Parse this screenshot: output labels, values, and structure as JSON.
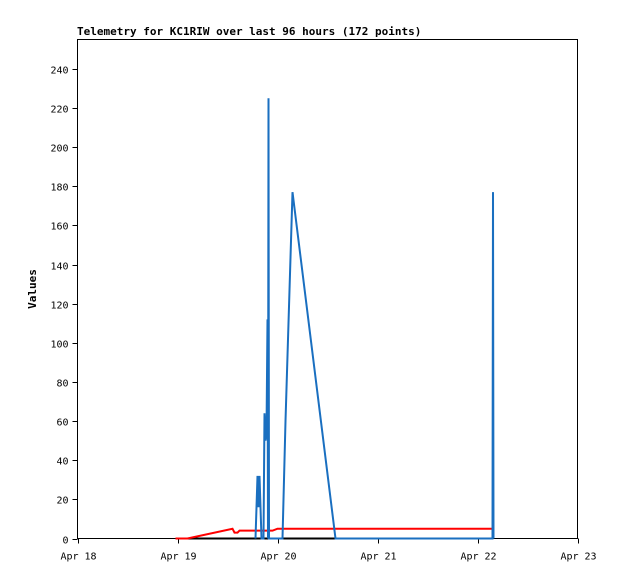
{
  "chart_data": {
    "type": "line",
    "title": "Telemetry for KC1RIW over last 96 hours (172 points)",
    "ylabel": "Values",
    "xlabel": "",
    "xlim": [
      0,
      5
    ],
    "ylim": [
      0,
      255
    ],
    "y_ticks": [
      0,
      20,
      40,
      60,
      80,
      100,
      120,
      140,
      160,
      180,
      200,
      220,
      240
    ],
    "x_ticks": [
      {
        "value": 0,
        "label": "Apr 18"
      },
      {
        "value": 1,
        "label": "Apr 19"
      },
      {
        "value": 2,
        "label": "Apr 20"
      },
      {
        "value": 3,
        "label": "Apr 21"
      },
      {
        "value": 4,
        "label": "Apr 22"
      },
      {
        "value": 5,
        "label": "Apr 23"
      }
    ],
    "grid": false,
    "series": [
      {
        "color": "#000000",
        "points": [
          [
            0.98,
            0
          ],
          [
            4.15,
            0
          ]
        ]
      },
      {
        "color": "#ff0000",
        "points": [
          [
            0.98,
            0
          ],
          [
            1.1,
            0
          ],
          [
            1.55,
            5
          ],
          [
            1.57,
            3
          ],
          [
            1.6,
            3
          ],
          [
            1.62,
            4
          ],
          [
            1.65,
            4
          ],
          [
            1.95,
            4
          ],
          [
            2.0,
            5
          ],
          [
            4.15,
            5
          ]
        ]
      },
      {
        "color": "#1a6fc0",
        "points": [
          [
            1.78,
            0
          ],
          [
            1.79,
            16
          ],
          [
            1.8,
            32
          ],
          [
            1.81,
            16
          ],
          [
            1.82,
            32
          ],
          [
            1.83,
            16
          ],
          [
            1.84,
            0
          ],
          [
            1.86,
            0
          ],
          [
            1.87,
            64
          ],
          [
            1.88,
            50
          ],
          [
            1.89,
            54
          ],
          [
            1.9,
            112
          ],
          [
            1.905,
            0
          ],
          [
            1.91,
            225
          ],
          [
            1.915,
            0
          ],
          [
            2.05,
            0
          ],
          [
            2.08,
            60
          ],
          [
            2.15,
            177
          ],
          [
            2.58,
            0
          ],
          [
            4.15,
            0
          ],
          [
            4.155,
            177
          ],
          [
            4.16,
            0
          ]
        ]
      }
    ]
  }
}
